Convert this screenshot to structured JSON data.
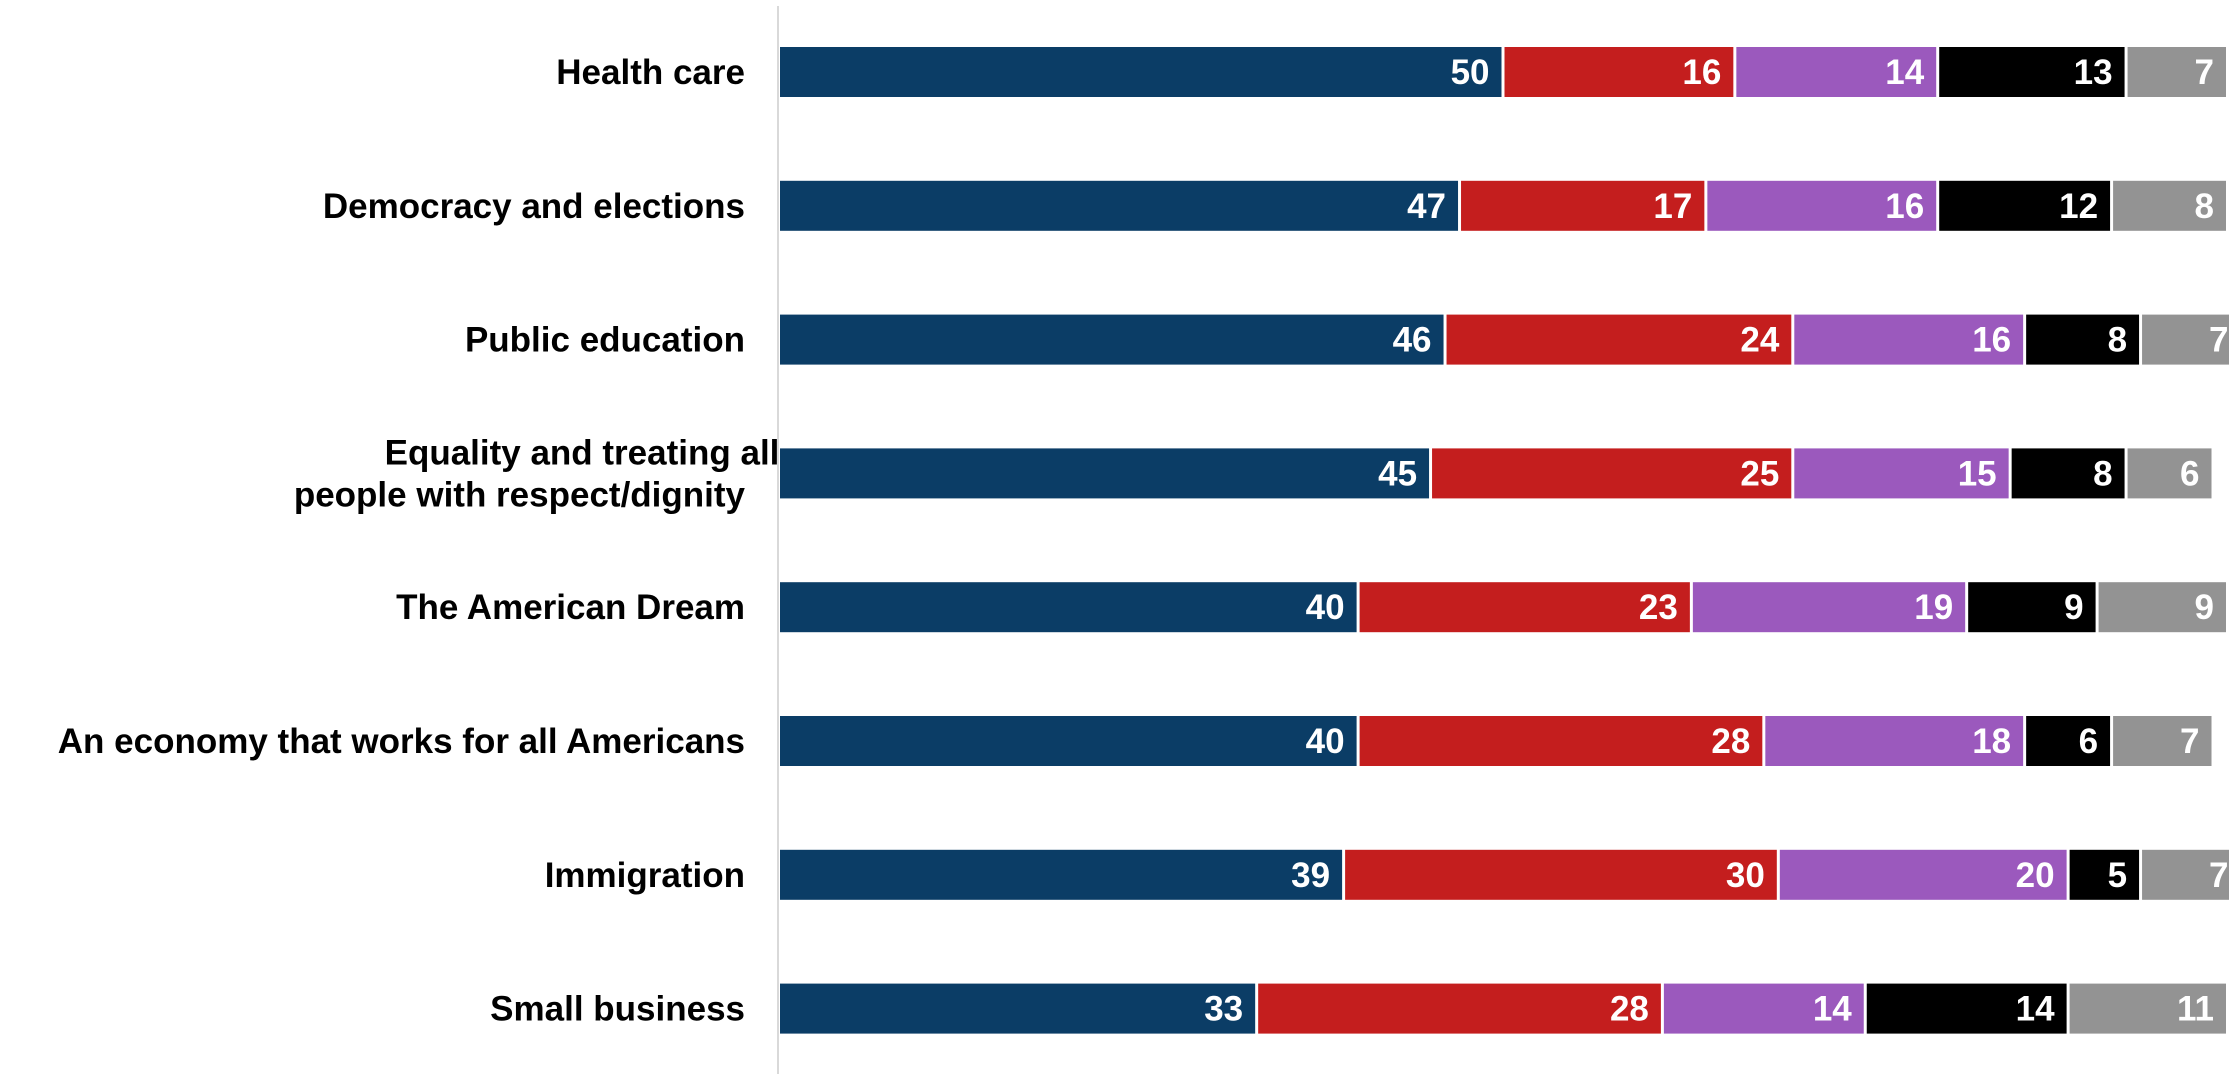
{
  "chart_data": {
    "type": "bar",
    "orientation": "horizontal",
    "stacked": true,
    "title": "",
    "xlabel": "",
    "ylabel": "",
    "xlim": [
      0,
      100
    ],
    "grid": false,
    "legend": "none",
    "categories": [
      "Health care",
      "Democracy and elections",
      "Public education",
      "Equality and treating all\npeople with respect/dignity",
      "The American Dream",
      "An economy that works for all Americans",
      "Immigration",
      "Small business"
    ],
    "series": [
      {
        "color": "#0b3d66",
        "values": [
          50,
          47,
          46,
          45,
          40,
          40,
          39,
          33
        ]
      },
      {
        "color": "#c41e1e",
        "values": [
          16,
          17,
          24,
          25,
          23,
          28,
          30,
          28
        ]
      },
      {
        "color": "#9b59bd",
        "values": [
          14,
          16,
          16,
          15,
          19,
          18,
          20,
          14
        ]
      },
      {
        "color": "#000000",
        "values": [
          13,
          12,
          8,
          8,
          9,
          6,
          5,
          14
        ]
      },
      {
        "color": "#939393",
        "values": [
          7,
          8,
          7,
          6,
          9,
          7,
          7,
          11
        ]
      }
    ],
    "value_labels": true
  }
}
